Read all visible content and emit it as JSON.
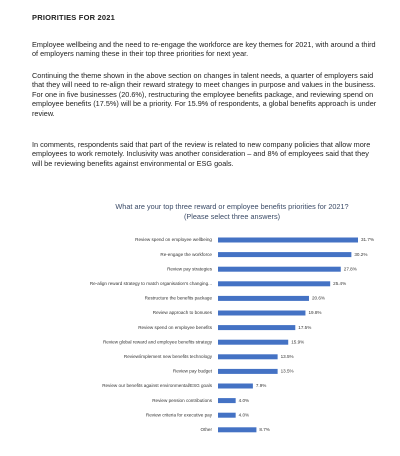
{
  "header": {
    "title": "PRIORITIES FOR 2021"
  },
  "paragraphs": [
    "Employee wellbeing and the need to re-engage the workforce are key themes for 2021, with around a third of employers naming these in their top three priorities for next year.",
    "Continuing the theme shown in the above section on changes in talent needs, a quarter of employers said that they will need to re-align their reward strategy to meet changes in purpose and values in the business. For one in five businesses (20.6%), restructuring the employee benefits package, and reviewing spend on employee benefits (17.5%) will be a priority. For 15.9% of respondents, a global benefits approach is under review.",
    "In comments, respondents said that part of the review is related to new company policies that allow more employees to work remotely.  Inclusivity was another consideration – and 8% of employees said that they will be reviewing benefits against environmental or ESG goals."
  ],
  "chart": {
    "type": "bar",
    "orientation": "horizontal",
    "title": "What are your top three reward or employee benefits priorities for 2021?",
    "subtitle": "(Please select three answers)",
    "color": "#4472c4",
    "categories": [
      "Review spend on employee wellbeing",
      "Re-engage the workforce",
      "Review pay strategies",
      "Re-align reward strategy to match organisation's changing...",
      "Restructure the benefits package",
      "Review approach to bonuses",
      "Review spend on employee benefits",
      "Review global reward and employee benefits strategy",
      "Review/implement new benefits technology",
      "Review pay budget",
      "Review our benefits against environmental/ESG goals",
      "Review pension contributions",
      "Review criteria for executive pay",
      "Other"
    ],
    "values": [
      31.7,
      30.2,
      27.8,
      25.4,
      20.6,
      19.8,
      17.5,
      15.9,
      13.5,
      13.5,
      7.9,
      4.0,
      4.0,
      8.7
    ],
    "value_labels": [
      "31.7%",
      "30.2%",
      "27.8%",
      "25.4%",
      "20.6%",
      "19.8%",
      "17.5%",
      "15.9%",
      "13.5%",
      "13.5%",
      "7.9%",
      "4.0%",
      "4.0%",
      "8.7%"
    ]
  }
}
